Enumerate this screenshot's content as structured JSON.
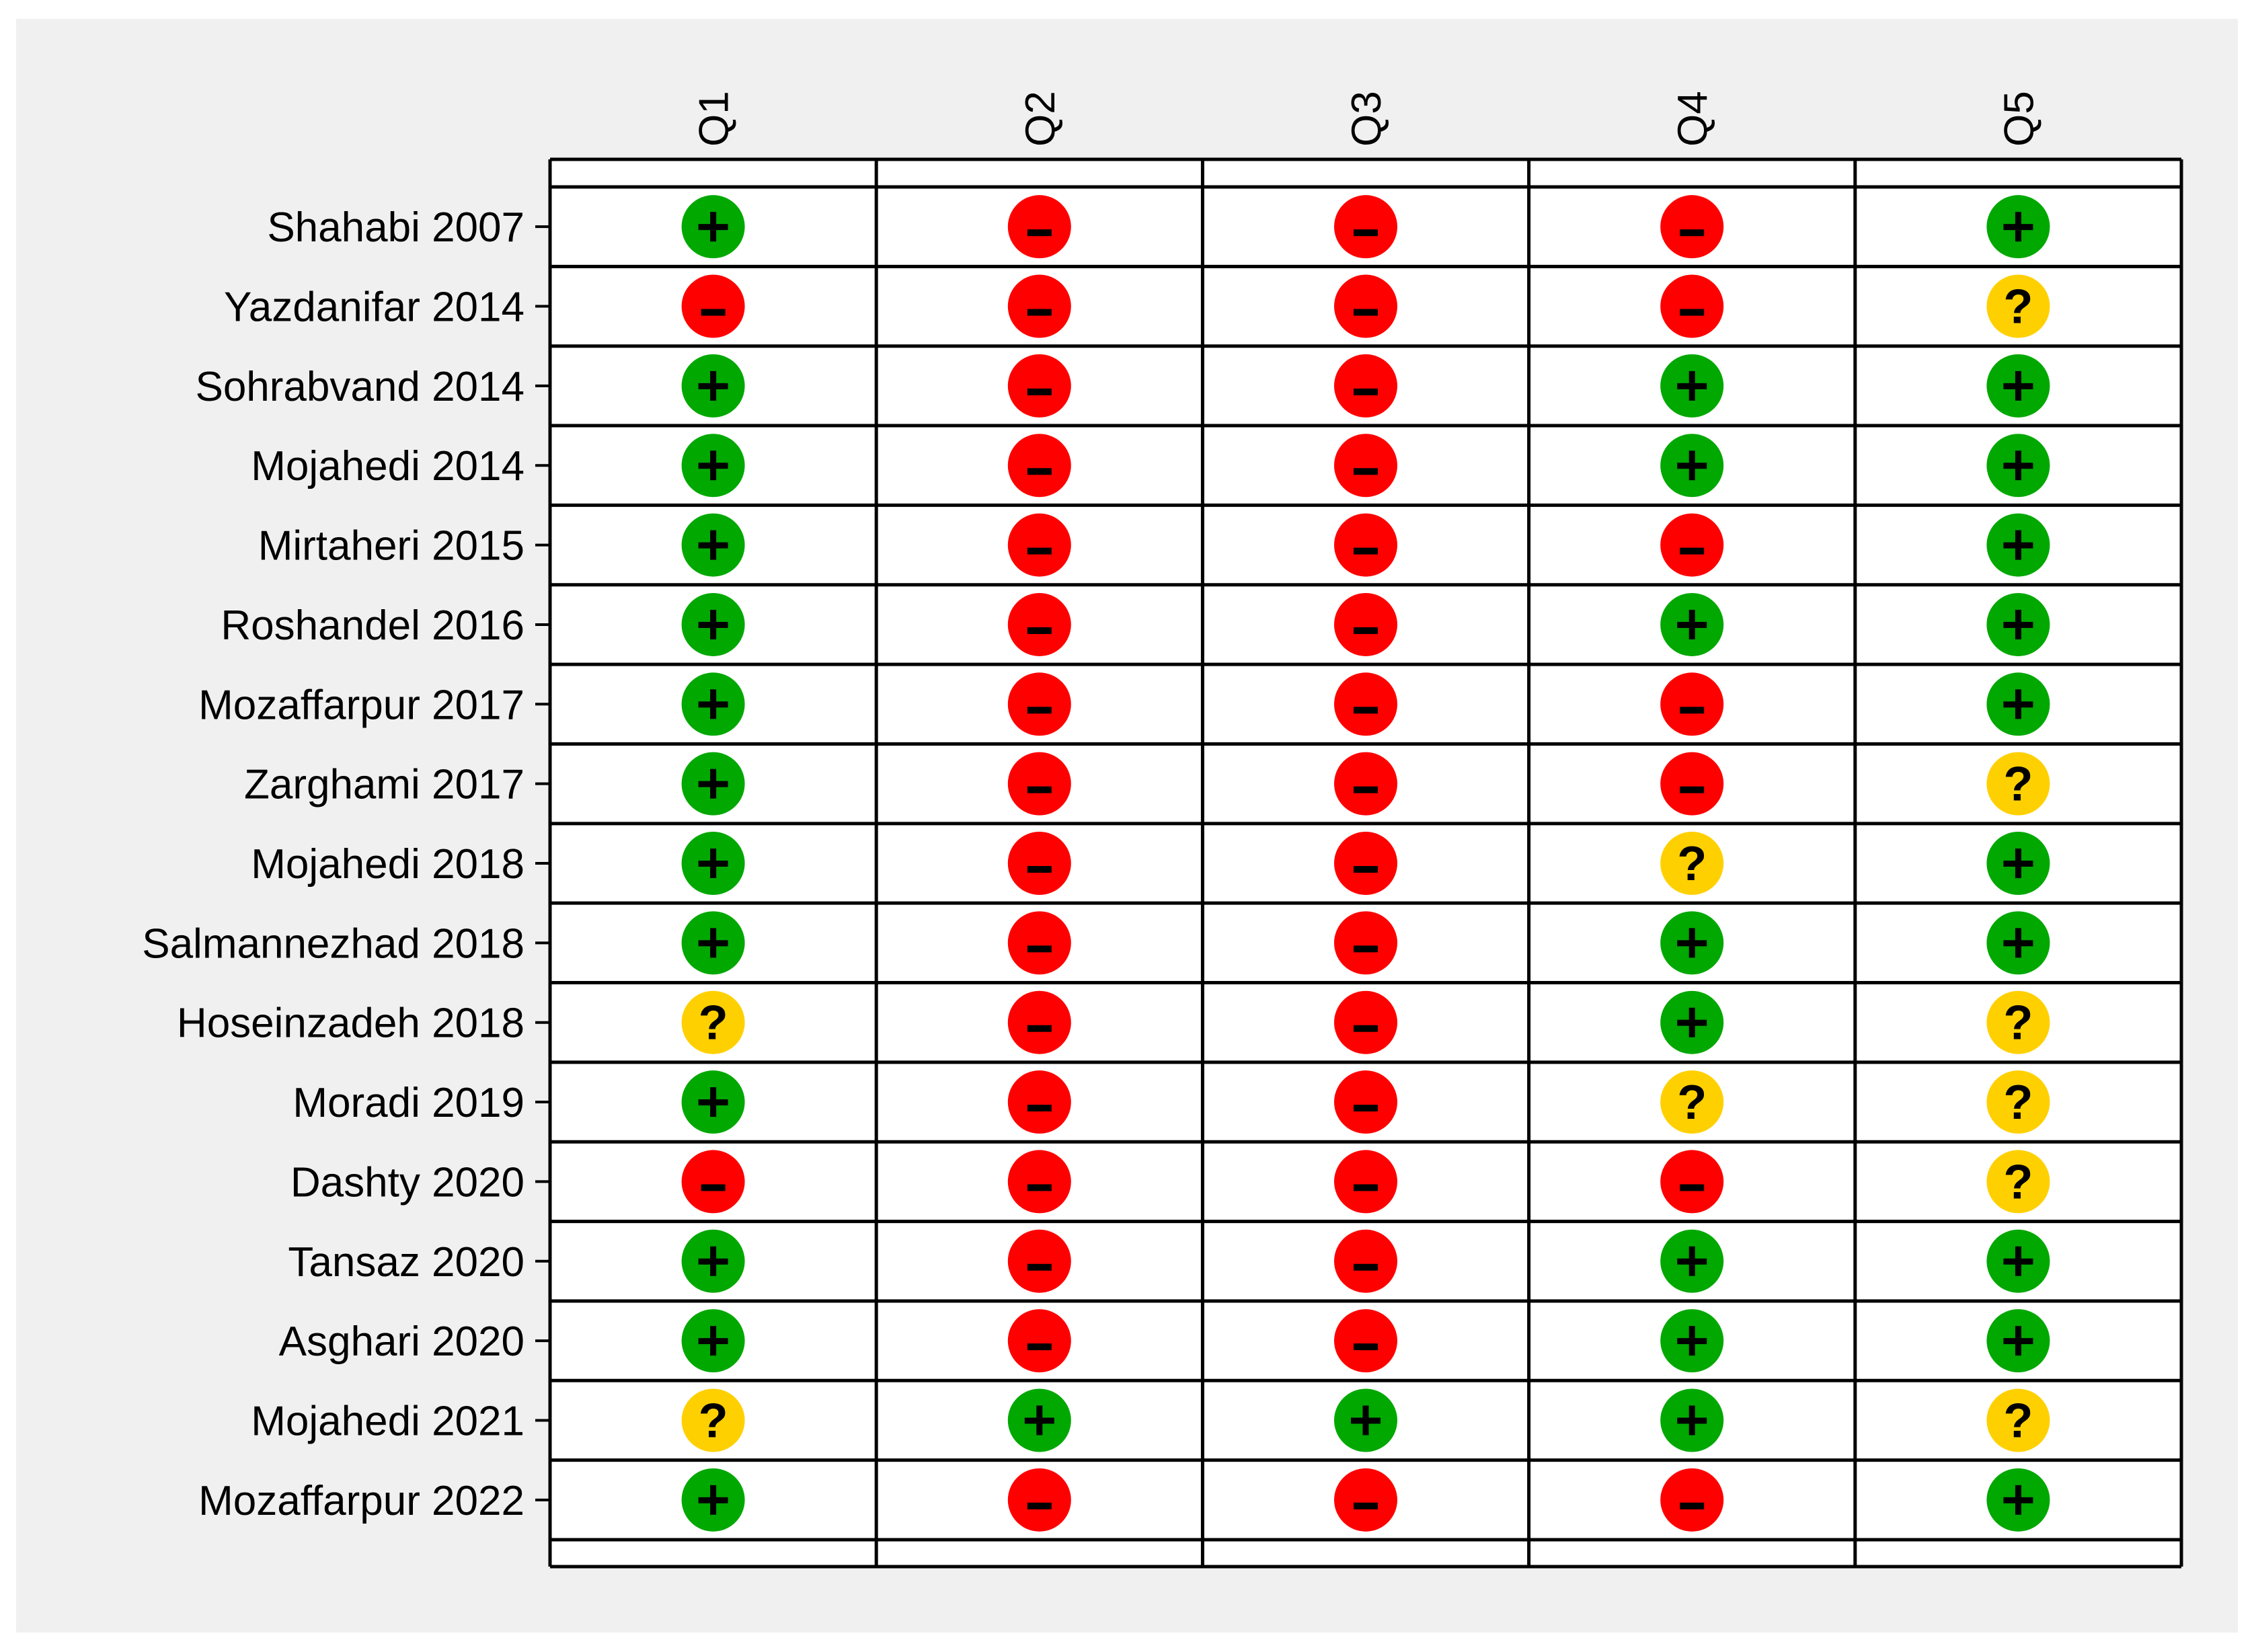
{
  "chart_data": {
    "type": "table",
    "columns": [
      "Q1",
      "Q2",
      "Q3",
      "Q4",
      "Q5"
    ],
    "rows": [
      {
        "study": "Shahabi 2007",
        "ratings": [
          "+",
          "-",
          "-",
          "-",
          "+"
        ]
      },
      {
        "study": "Yazdanifar 2014",
        "ratings": [
          "-",
          "-",
          "-",
          "-",
          "?"
        ]
      },
      {
        "study": "Sohrabvand 2014",
        "ratings": [
          "+",
          "-",
          "-",
          "+",
          "+"
        ]
      },
      {
        "study": "Mojahedi 2014",
        "ratings": [
          "+",
          "-",
          "-",
          "+",
          "+"
        ]
      },
      {
        "study": "Mirtaheri 2015",
        "ratings": [
          "+",
          "-",
          "-",
          "-",
          "+"
        ]
      },
      {
        "study": "Roshandel 2016",
        "ratings": [
          "+",
          "-",
          "-",
          "+",
          "+"
        ]
      },
      {
        "study": "Mozaffarpur 2017",
        "ratings": [
          "+",
          "-",
          "-",
          "-",
          "+"
        ]
      },
      {
        "study": "Zarghami 2017",
        "ratings": [
          "+",
          "-",
          "-",
          "-",
          "?"
        ]
      },
      {
        "study": "Mojahedi 2018",
        "ratings": [
          "+",
          "-",
          "-",
          "?",
          "+"
        ]
      },
      {
        "study": "Salmannezhad 2018",
        "ratings": [
          "+",
          "-",
          "-",
          "+",
          "+"
        ]
      },
      {
        "study": "Hoseinzadeh 2018",
        "ratings": [
          "?",
          "-",
          "-",
          "+",
          "?"
        ]
      },
      {
        "study": "Moradi 2019",
        "ratings": [
          "+",
          "-",
          "-",
          "?",
          "?"
        ]
      },
      {
        "study": "Dashty 2020",
        "ratings": [
          "-",
          "-",
          "-",
          "-",
          "?"
        ]
      },
      {
        "study": "Tansaz 2020",
        "ratings": [
          "+",
          "-",
          "-",
          "+",
          "+"
        ]
      },
      {
        "study": "Asghari 2020",
        "ratings": [
          "+",
          "-",
          "-",
          "+",
          "+"
        ]
      },
      {
        "study": "Mojahedi 2021",
        "ratings": [
          "?",
          "+",
          "+",
          "+",
          "?"
        ]
      },
      {
        "study": "Mozaffarpur 2022",
        "ratings": [
          "+",
          "-",
          "-",
          "-",
          "+"
        ]
      }
    ],
    "rating_colors": {
      "+": "#00A800",
      "-": "#FF0000",
      "?": "#FFD000"
    },
    "background_color": "#F0F0F0"
  }
}
